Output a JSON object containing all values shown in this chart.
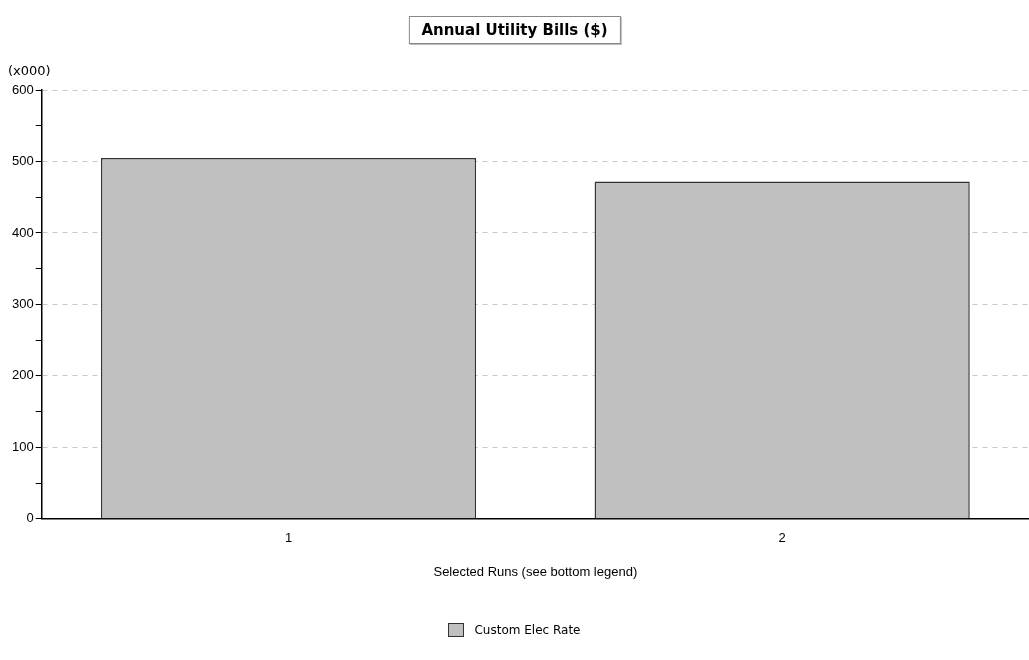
{
  "chart_data": {
    "type": "bar",
    "title": "Annual Utility Bills ($)",
    "xlabel": "Selected Runs (see bottom legend)",
    "ylabel": "(x000)",
    "categories": [
      "1",
      "2"
    ],
    "series": [
      {
        "name": "Custom Elec Rate",
        "color": "#c0c0c0",
        "values": [
          505,
          472
        ]
      }
    ],
    "ylim": [
      0,
      600
    ],
    "yticks": [
      0,
      {
        "value": 50,
        "label": null
      },
      100,
      {
        "value": 150,
        "label": null
      },
      200,
      {
        "value": 250,
        "label": null
      },
      300,
      {
        "value": 350,
        "label": null
      },
      400,
      {
        "value": 450,
        "label": null
      },
      500,
      {
        "value": 550,
        "label": null
      },
      600
    ],
    "grid": "y",
    "legend": "bottom"
  }
}
